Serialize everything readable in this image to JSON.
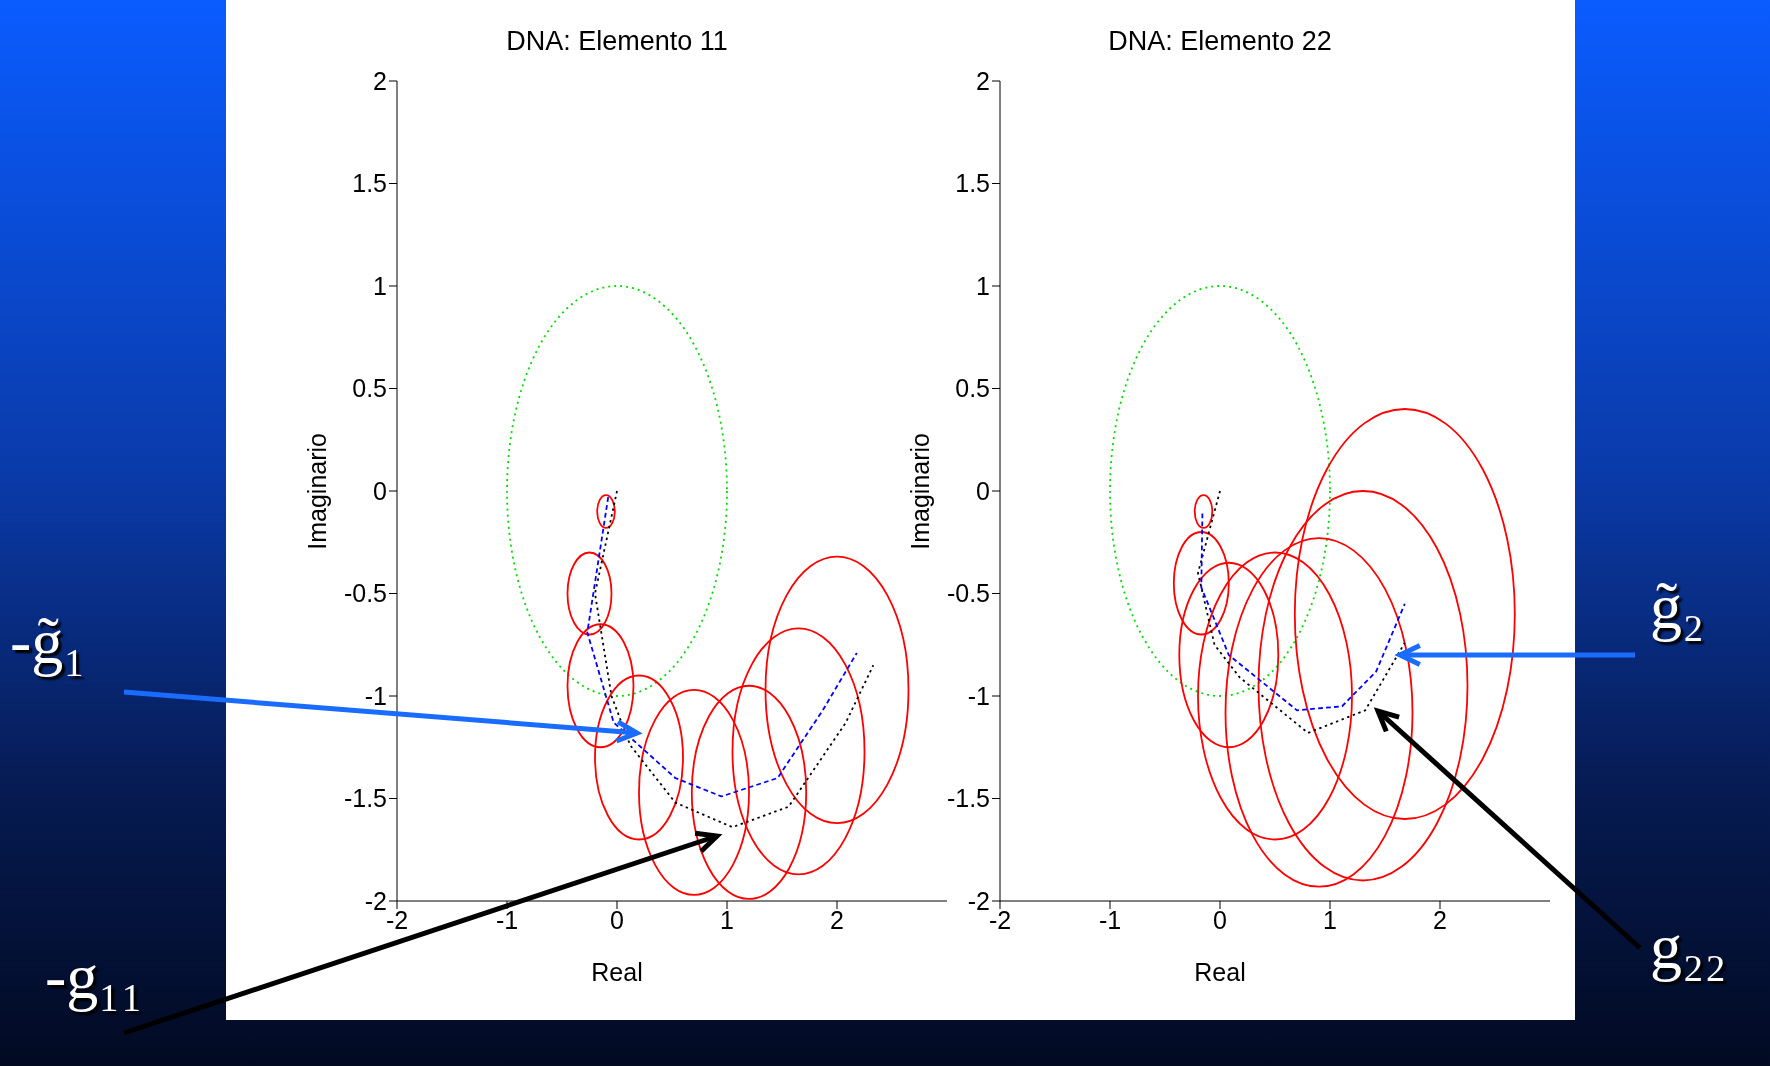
{
  "chart_data": [
    {
      "type": "line",
      "title": "DNA: Elemento 11",
      "xlabel": "Real",
      "ylabel": "Imaginario",
      "xlim": [
        -2,
        3
      ],
      "ylim": [
        -2,
        2
      ],
      "xticks": [
        -2,
        -1,
        0,
        1,
        2
      ],
      "yticks": [
        -2,
        -1.5,
        -1,
        -0.5,
        0,
        0.5,
        1,
        1.5,
        2
      ],
      "marker": "none",
      "series": [
        {
          "color": "#000000",
          "line_style": "dotted",
          "x": [
            0,
            -0.2,
            -0.05,
            0.12,
            0.53,
            1.05,
            1.56,
            2.08,
            2.33
          ],
          "values": [
            0,
            -0.5,
            -1.0,
            -1.24,
            -1.52,
            -1.64,
            -1.54,
            -1.13,
            -0.85
          ]
        },
        {
          "color": "#0000ff",
          "line_style": "dashed",
          "x": [
            -0.08,
            -0.27,
            -0.03,
            0.53,
            0.95,
            1.46,
            1.87,
            2.18
          ],
          "values": [
            -0.03,
            -0.69,
            -1.13,
            -1.4,
            -1.49,
            -1.4,
            -1.07,
            -0.79
          ]
        }
      ],
      "annotations": [
        "-g̃₁",
        "-g₁₁"
      ]
    },
    {
      "type": "line",
      "title": "DNA: Elemento 22",
      "xlabel": "Real",
      "ylabel": "Imaginario",
      "xlim": [
        -2,
        3
      ],
      "ylim": [
        -2,
        2
      ],
      "xticks": [
        -2,
        -1,
        0,
        1,
        2
      ],
      "yticks": [
        -2,
        -1.5,
        -1,
        -0.5,
        0,
        0.5,
        1,
        1.5,
        2
      ],
      "marker": "none",
      "series": [
        {
          "color": "#000000",
          "line_style": "dotted",
          "x": [
            0,
            -0.2,
            -0.05,
            0.18,
            0.8,
            1.32,
            1.68
          ],
          "values": [
            0,
            -0.4,
            -0.75,
            -0.91,
            -1.18,
            -1.07,
            -0.74
          ]
        },
        {
          "color": "#0000ff",
          "line_style": "dashed",
          "x": [
            -0.16,
            -0.17,
            0.08,
            0.7,
            1.11,
            1.42,
            1.68
          ],
          "values": [
            -0.11,
            -0.47,
            -0.8,
            -1.07,
            -1.05,
            -0.88,
            -0.55
          ]
        }
      ],
      "annotations": [
        "g̃₂",
        "g₂₂"
      ]
    }
  ]
}
